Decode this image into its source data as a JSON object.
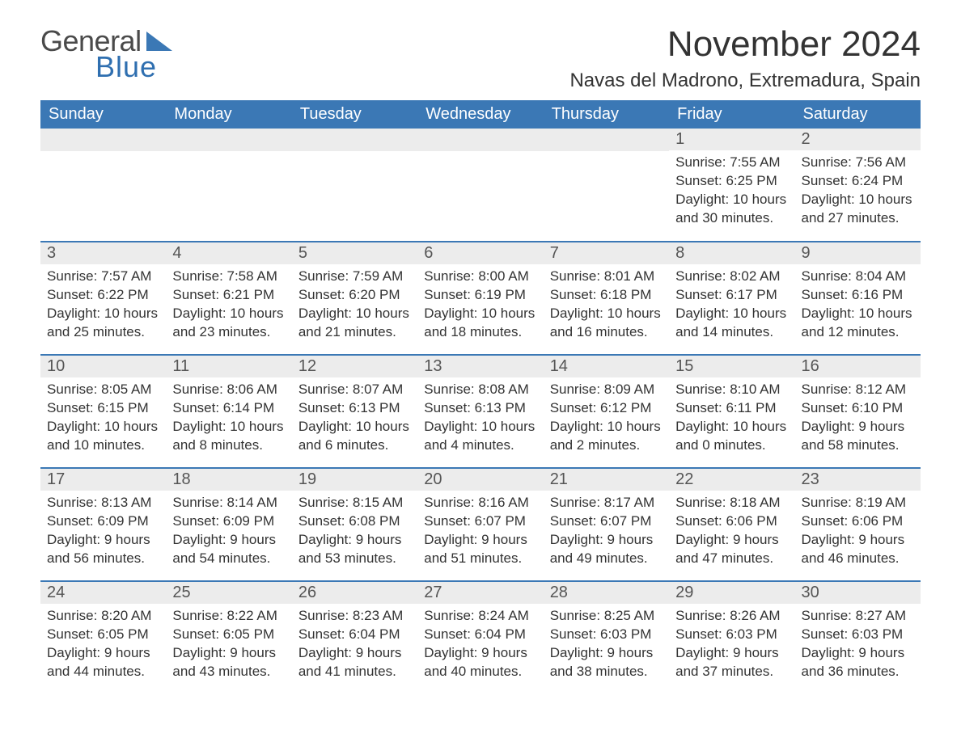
{
  "brand": {
    "word1": "General",
    "word2": "Blue",
    "color_primary": "#3b78b5",
    "color_text": "#4a4a4a"
  },
  "title": "November 2024",
  "location": "Navas del Madrono, Extremadura, Spain",
  "colors": {
    "header_bg": "#3b78b5",
    "header_text": "#ffffff",
    "daynum_bg": "#ececec",
    "body_text": "#333333",
    "row_divider": "#3b78b5",
    "page_bg": "#ffffff"
  },
  "typography": {
    "title_fontsize": 44,
    "location_fontsize": 24,
    "header_fontsize": 20,
    "daynum_fontsize": 20,
    "cell_fontsize": 17
  },
  "week_header": [
    "Sunday",
    "Monday",
    "Tuesday",
    "Wednesday",
    "Thursday",
    "Friday",
    "Saturday"
  ],
  "weeks": [
    [
      null,
      null,
      null,
      null,
      null,
      {
        "day": "1",
        "sunrise": "Sunrise: 7:55 AM",
        "sunset": "Sunset: 6:25 PM",
        "daylight": "Daylight: 10 hours and 30 minutes."
      },
      {
        "day": "2",
        "sunrise": "Sunrise: 7:56 AM",
        "sunset": "Sunset: 6:24 PM",
        "daylight": "Daylight: 10 hours and 27 minutes."
      }
    ],
    [
      {
        "day": "3",
        "sunrise": "Sunrise: 7:57 AM",
        "sunset": "Sunset: 6:22 PM",
        "daylight": "Daylight: 10 hours and 25 minutes."
      },
      {
        "day": "4",
        "sunrise": "Sunrise: 7:58 AM",
        "sunset": "Sunset: 6:21 PM",
        "daylight": "Daylight: 10 hours and 23 minutes."
      },
      {
        "day": "5",
        "sunrise": "Sunrise: 7:59 AM",
        "sunset": "Sunset: 6:20 PM",
        "daylight": "Daylight: 10 hours and 21 minutes."
      },
      {
        "day": "6",
        "sunrise": "Sunrise: 8:00 AM",
        "sunset": "Sunset: 6:19 PM",
        "daylight": "Daylight: 10 hours and 18 minutes."
      },
      {
        "day": "7",
        "sunrise": "Sunrise: 8:01 AM",
        "sunset": "Sunset: 6:18 PM",
        "daylight": "Daylight: 10 hours and 16 minutes."
      },
      {
        "day": "8",
        "sunrise": "Sunrise: 8:02 AM",
        "sunset": "Sunset: 6:17 PM",
        "daylight": "Daylight: 10 hours and 14 minutes."
      },
      {
        "day": "9",
        "sunrise": "Sunrise: 8:04 AM",
        "sunset": "Sunset: 6:16 PM",
        "daylight": "Daylight: 10 hours and 12 minutes."
      }
    ],
    [
      {
        "day": "10",
        "sunrise": "Sunrise: 8:05 AM",
        "sunset": "Sunset: 6:15 PM",
        "daylight": "Daylight: 10 hours and 10 minutes."
      },
      {
        "day": "11",
        "sunrise": "Sunrise: 8:06 AM",
        "sunset": "Sunset: 6:14 PM",
        "daylight": "Daylight: 10 hours and 8 minutes."
      },
      {
        "day": "12",
        "sunrise": "Sunrise: 8:07 AM",
        "sunset": "Sunset: 6:13 PM",
        "daylight": "Daylight: 10 hours and 6 minutes."
      },
      {
        "day": "13",
        "sunrise": "Sunrise: 8:08 AM",
        "sunset": "Sunset: 6:13 PM",
        "daylight": "Daylight: 10 hours and 4 minutes."
      },
      {
        "day": "14",
        "sunrise": "Sunrise: 8:09 AM",
        "sunset": "Sunset: 6:12 PM",
        "daylight": "Daylight: 10 hours and 2 minutes."
      },
      {
        "day": "15",
        "sunrise": "Sunrise: 8:10 AM",
        "sunset": "Sunset: 6:11 PM",
        "daylight": "Daylight: 10 hours and 0 minutes."
      },
      {
        "day": "16",
        "sunrise": "Sunrise: 8:12 AM",
        "sunset": "Sunset: 6:10 PM",
        "daylight": "Daylight: 9 hours and 58 minutes."
      }
    ],
    [
      {
        "day": "17",
        "sunrise": "Sunrise: 8:13 AM",
        "sunset": "Sunset: 6:09 PM",
        "daylight": "Daylight: 9 hours and 56 minutes."
      },
      {
        "day": "18",
        "sunrise": "Sunrise: 8:14 AM",
        "sunset": "Sunset: 6:09 PM",
        "daylight": "Daylight: 9 hours and 54 minutes."
      },
      {
        "day": "19",
        "sunrise": "Sunrise: 8:15 AM",
        "sunset": "Sunset: 6:08 PM",
        "daylight": "Daylight: 9 hours and 53 minutes."
      },
      {
        "day": "20",
        "sunrise": "Sunrise: 8:16 AM",
        "sunset": "Sunset: 6:07 PM",
        "daylight": "Daylight: 9 hours and 51 minutes."
      },
      {
        "day": "21",
        "sunrise": "Sunrise: 8:17 AM",
        "sunset": "Sunset: 6:07 PM",
        "daylight": "Daylight: 9 hours and 49 minutes."
      },
      {
        "day": "22",
        "sunrise": "Sunrise: 8:18 AM",
        "sunset": "Sunset: 6:06 PM",
        "daylight": "Daylight: 9 hours and 47 minutes."
      },
      {
        "day": "23",
        "sunrise": "Sunrise: 8:19 AM",
        "sunset": "Sunset: 6:06 PM",
        "daylight": "Daylight: 9 hours and 46 minutes."
      }
    ],
    [
      {
        "day": "24",
        "sunrise": "Sunrise: 8:20 AM",
        "sunset": "Sunset: 6:05 PM",
        "daylight": "Daylight: 9 hours and 44 minutes."
      },
      {
        "day": "25",
        "sunrise": "Sunrise: 8:22 AM",
        "sunset": "Sunset: 6:05 PM",
        "daylight": "Daylight: 9 hours and 43 minutes."
      },
      {
        "day": "26",
        "sunrise": "Sunrise: 8:23 AM",
        "sunset": "Sunset: 6:04 PM",
        "daylight": "Daylight: 9 hours and 41 minutes."
      },
      {
        "day": "27",
        "sunrise": "Sunrise: 8:24 AM",
        "sunset": "Sunset: 6:04 PM",
        "daylight": "Daylight: 9 hours and 40 minutes."
      },
      {
        "day": "28",
        "sunrise": "Sunrise: 8:25 AM",
        "sunset": "Sunset: 6:03 PM",
        "daylight": "Daylight: 9 hours and 38 minutes."
      },
      {
        "day": "29",
        "sunrise": "Sunrise: 8:26 AM",
        "sunset": "Sunset: 6:03 PM",
        "daylight": "Daylight: 9 hours and 37 minutes."
      },
      {
        "day": "30",
        "sunrise": "Sunrise: 8:27 AM",
        "sunset": "Sunset: 6:03 PM",
        "daylight": "Daylight: 9 hours and 36 minutes."
      }
    ]
  ]
}
